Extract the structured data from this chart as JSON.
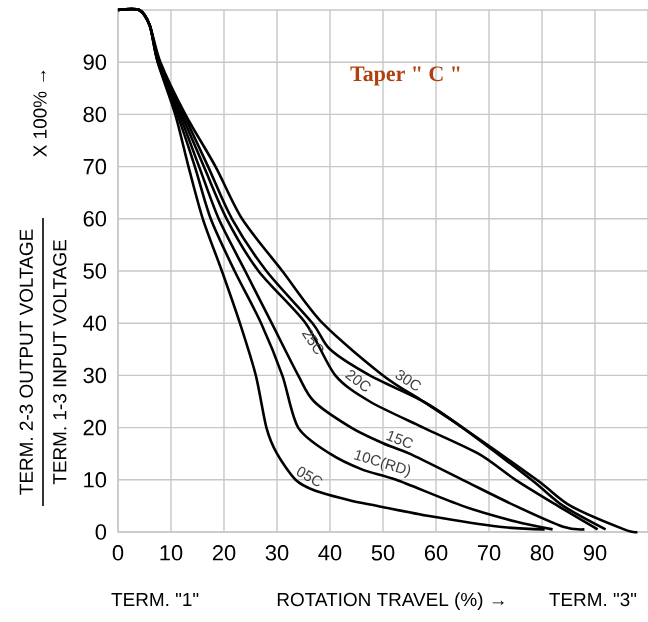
{
  "chart_data": {
    "type": "line",
    "title": "Taper \" C \"",
    "xlabel": "ROTATION TRAVEL (%) →",
    "ylabel": "TERM. 2-3 OUTPUT VOLTAGE",
    "annotations": [
      "TERM. 1-3 INPUT VOLTAGE",
      "X 100% →",
      "TERM. \"1\"",
      "TERM. \"3\""
    ],
    "xlim": [
      0,
      100
    ],
    "ylim": [
      0,
      100
    ],
    "xticks": [
      0,
      10,
      20,
      30,
      40,
      50,
      60,
      70,
      80,
      90
    ],
    "yticks": [
      0,
      10,
      20,
      30,
      40,
      50,
      60,
      70,
      80,
      90
    ],
    "grid": true,
    "legend": false,
    "marker": "none",
    "line_style": "solid",
    "series": [
      {
        "name": "05C",
        "color": "#000000",
        "x": [
          0,
          4,
          6,
          7.5,
          10.8,
          13.3,
          16,
          19.6,
          23,
          26,
          28,
          30,
          33.5,
          37,
          44,
          49,
          59,
          72,
          80.5
        ],
        "values": [
          100,
          100,
          97,
          90,
          80,
          70,
          60,
          50,
          40,
          30,
          20,
          15,
          10,
          8,
          6,
          5,
          3,
          1,
          0.5
        ]
      },
      {
        "name": "10C(RD)",
        "color": "#000000",
        "x": [
          0,
          4,
          6,
          7.5,
          11.2,
          14.5,
          17.5,
          22,
          27,
          31,
          34,
          40,
          46,
          52.5,
          65,
          75,
          82
        ],
        "values": [
          100,
          100,
          97,
          90,
          80,
          70,
          60,
          50,
          40,
          30,
          20,
          15,
          12,
          10,
          5,
          2,
          0.5
        ]
      },
      {
        "name": "15C",
        "color": "#000000",
        "x": [
          0,
          4,
          6,
          7.6,
          11.6,
          15.3,
          19,
          24,
          29,
          34,
          37,
          44,
          50,
          55,
          65,
          75,
          84,
          88
        ],
        "values": [
          100,
          100,
          97,
          90,
          80,
          70,
          60,
          50,
          40,
          30,
          25,
          20,
          17,
          15,
          10,
          5,
          1,
          0.5
        ]
      },
      {
        "name": "20C",
        "color": "#000000",
        "x": [
          0,
          4,
          6,
          7.7,
          12,
          16.2,
          20.5,
          26.5,
          35.4,
          41,
          47.5,
          57.6,
          68,
          75,
          83,
          90.5
        ],
        "values": [
          100,
          100,
          97,
          90,
          80,
          70,
          60,
          50,
          40,
          30,
          25,
          20,
          15,
          10,
          5,
          0.5
        ]
      },
      {
        "name": "25C",
        "color": "#000000",
        "x": [
          0,
          4,
          6,
          7.8,
          12.4,
          17,
          21.5,
          28,
          36.7,
          40,
          47.5,
          57.6,
          65,
          78,
          84,
          92
        ],
        "values": [
          100,
          100,
          97,
          90,
          80,
          70,
          60,
          50,
          40,
          35,
          30,
          25,
          20,
          10,
          5,
          0.5
        ]
      },
      {
        "name": "30C",
        "color": "#000000",
        "x": [
          0,
          4,
          6,
          8,
          12.7,
          18.4,
          23.4,
          31,
          38.6,
          50,
          57.6,
          65,
          79,
          85.4,
          95.5,
          98
        ],
        "values": [
          100,
          100,
          97,
          90,
          80,
          70,
          60,
          50,
          40,
          30,
          25,
          20,
          10,
          5,
          0.5,
          0
        ]
      }
    ]
  }
}
